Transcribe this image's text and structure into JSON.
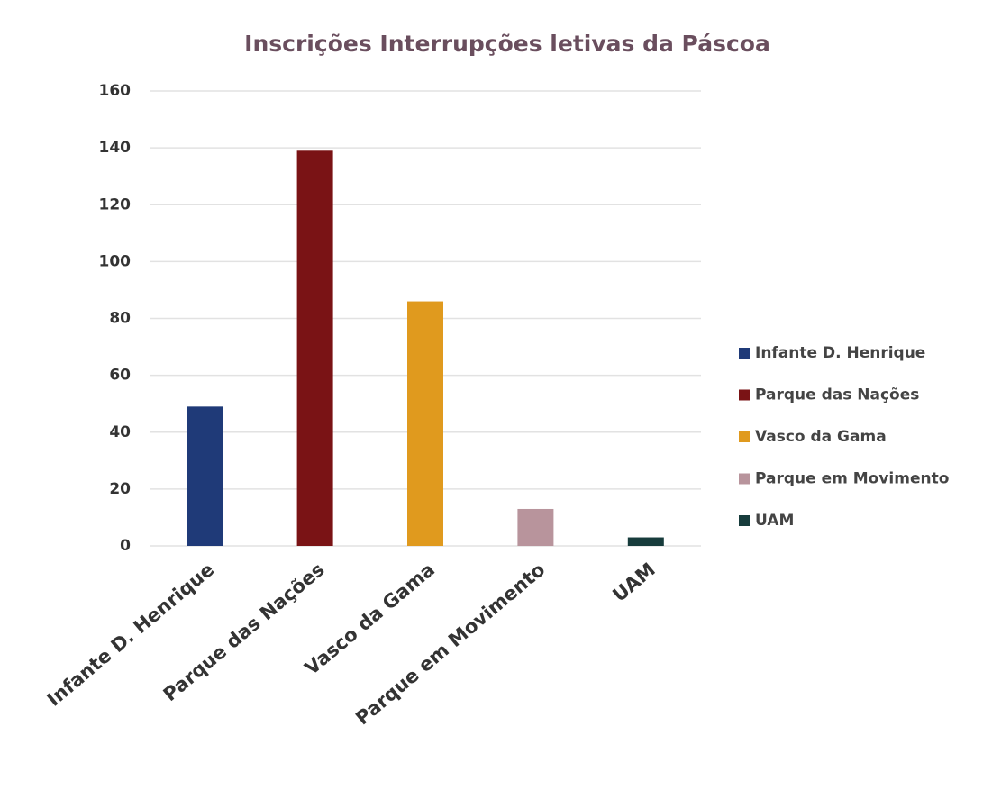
{
  "chart_data": {
    "type": "bar",
    "title": "Inscrições Interrupções letivas da Páscoa",
    "categories": [
      "Infante D. Henrique",
      "Parque das Nações",
      "Vasco da Gama",
      "Parque em Movimento",
      "UAM"
    ],
    "values": [
      49,
      139,
      86,
      13,
      3
    ],
    "colors": [
      "#1f3a78",
      "#7a1315",
      "#e09a1e",
      "#b8949c",
      "#173c3c"
    ],
    "ylim": [
      0,
      160
    ],
    "yticks": [
      0,
      20,
      40,
      60,
      80,
      100,
      120,
      140,
      160
    ],
    "grid": true,
    "legend": "right"
  }
}
